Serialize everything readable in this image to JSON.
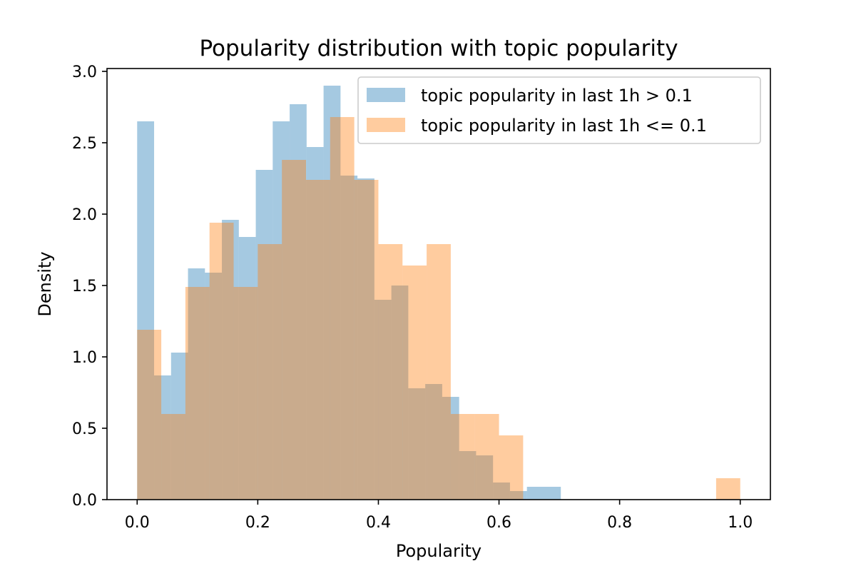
{
  "chart_data": {
    "type": "histogram",
    "title": "Popularity distribution with topic popularity",
    "xlabel": "Popularity",
    "ylabel": "Density",
    "xlim": [
      -0.05,
      1.05
    ],
    "ylim": [
      0,
      3.02
    ],
    "xticks": [
      "0.0",
      "0.2",
      "0.4",
      "0.6",
      "0.8",
      "1.0"
    ],
    "yticks": [
      "0.0",
      "0.5",
      "1.0",
      "1.5",
      "2.0",
      "2.5",
      "3.0"
    ],
    "grid": false,
    "legend_position": "top-right",
    "series": [
      {
        "name": "topic popularity in last 1h > 0.1",
        "color": "#1f77b4",
        "opacity": 0.4,
        "bin_edges": [
          0.0,
          0.0281,
          0.0562,
          0.0843,
          0.1124,
          0.1405,
          0.1686,
          0.1967,
          0.2248,
          0.2529,
          0.281,
          0.3091,
          0.3372,
          0.3653,
          0.3934,
          0.4215,
          0.4496,
          0.4777,
          0.5058,
          0.5339,
          0.562,
          0.5901,
          0.6182,
          0.6463,
          0.6744,
          0.7025
        ],
        "values": [
          2.65,
          0.87,
          1.03,
          1.62,
          1.59,
          1.96,
          1.84,
          2.31,
          2.65,
          2.77,
          2.47,
          2.9,
          2.27,
          2.25,
          1.4,
          1.5,
          0.78,
          0.81,
          0.72,
          0.34,
          0.31,
          0.12,
          0.06,
          0.09,
          0.09
        ]
      },
      {
        "name": "topic popularity in last 1h <= 0.1",
        "color": "#ff7f0e",
        "opacity": 0.4,
        "bin_edges": [
          0.0,
          0.04,
          0.08,
          0.12,
          0.16,
          0.2,
          0.24,
          0.28,
          0.32,
          0.36,
          0.4,
          0.44,
          0.48,
          0.52,
          0.56,
          0.6,
          0.64,
          0.68,
          0.72,
          0.76,
          0.8,
          0.84,
          0.88,
          0.92,
          0.96,
          1.0
        ],
        "values": [
          1.19,
          0.6,
          1.49,
          1.94,
          1.49,
          1.79,
          2.38,
          2.24,
          2.68,
          2.24,
          1.79,
          1.64,
          1.79,
          0.6,
          0.6,
          0.45,
          0.0,
          0.0,
          0.0,
          0.0,
          0.0,
          0.0,
          0.0,
          0.0,
          0.15
        ]
      }
    ]
  }
}
